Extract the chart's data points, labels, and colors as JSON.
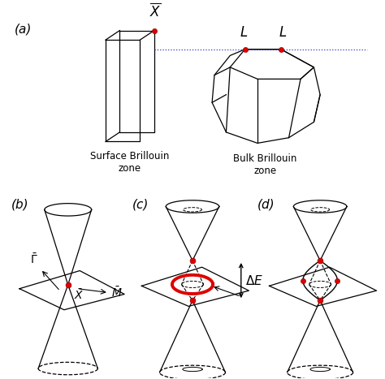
{
  "bg_color": "#ffffff",
  "line_color": "#000000",
  "red_color": "#dd0000",
  "blue_color": "#3333cc",
  "panel_labels": [
    "(a)",
    "(b)",
    "(c)",
    "(d)"
  ],
  "surface_label": "Surface Brillouin\nzone",
  "bulk_label": "Bulk Brillouin\nzone",
  "font_size_panel": 11,
  "font_size_label": 10
}
